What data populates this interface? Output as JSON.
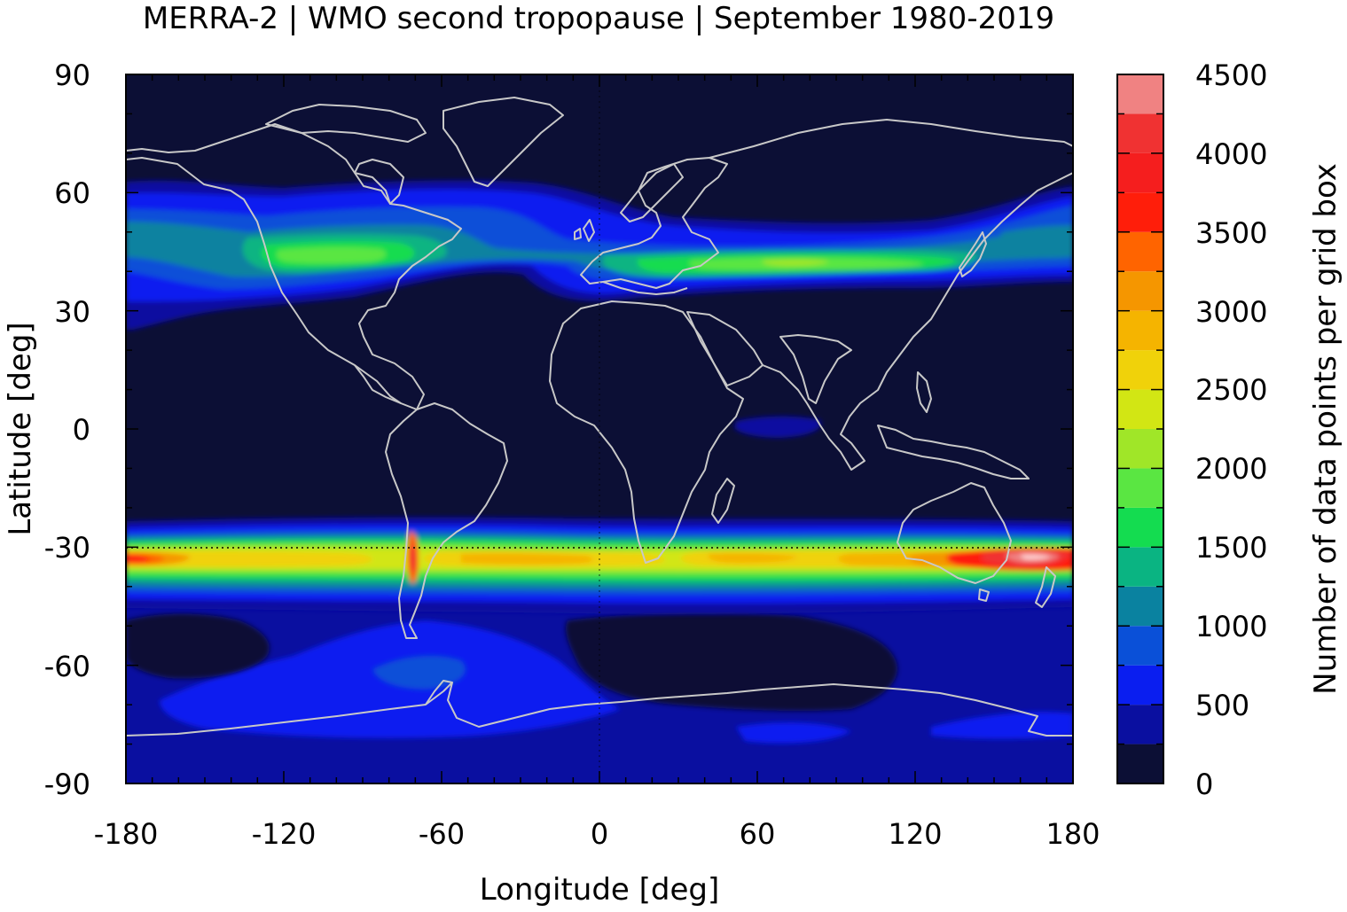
{
  "title": "MERRA-2 | WMO second tropopause | September 1980-2019",
  "chart_data": {
    "type": "heatmap",
    "title": "MERRA-2 | WMO second tropopause | September 1980-2019",
    "xlabel": "Longitude [deg]",
    "ylabel": "Latitude [deg]",
    "colorbar_label": "Number of data points per grid box",
    "xlim": [
      -180,
      180
    ],
    "ylim": [
      -90,
      90
    ],
    "xticks": [
      "-180",
      "-120",
      "-60",
      "0",
      "60",
      "120",
      "180"
    ],
    "yticks": [
      "90",
      "60",
      "30",
      "0",
      "-30",
      "-60",
      "-90"
    ],
    "colorbar_range": [
      0,
      4500
    ],
    "colorbar_ticks": [
      "4500",
      "4000",
      "3500",
      "3000",
      "2500",
      "2000",
      "1500",
      "1000",
      "500",
      "0"
    ],
    "colorbar_levels": [
      {
        "from": 0,
        "to": 250,
        "color": "#0c0f35"
      },
      {
        "from": 250,
        "to": 500,
        "color": "#0a0fa0"
      },
      {
        "from": 500,
        "to": 750,
        "color": "#0a1ef0"
      },
      {
        "from": 750,
        "to": 1000,
        "color": "#0a50d8"
      },
      {
        "from": 1000,
        "to": 1250,
        "color": "#0a82a0"
      },
      {
        "from": 1250,
        "to": 1500,
        "color": "#0ab482"
      },
      {
        "from": 1500,
        "to": 1750,
        "color": "#14dc50"
      },
      {
        "from": 1750,
        "to": 2000,
        "color": "#5ae642"
      },
      {
        "from": 2000,
        "to": 2250,
        "color": "#a0e628"
      },
      {
        "from": 2250,
        "to": 2500,
        "color": "#d2e614"
      },
      {
        "from": 2500,
        "to": 2750,
        "color": "#f0d20a"
      },
      {
        "from": 2750,
        "to": 3000,
        "color": "#f5b400"
      },
      {
        "from": 3000,
        "to": 3250,
        "color": "#f59600"
      },
      {
        "from": 3250,
        "to": 3500,
        "color": "#ff6400"
      },
      {
        "from": 3500,
        "to": 3750,
        "color": "#ff1e0a"
      },
      {
        "from": 3750,
        "to": 4000,
        "color": "#f51e1e"
      },
      {
        "from": 4000,
        "to": 4250,
        "color": "#f03232"
      },
      {
        "from": 4250,
        "to": 4500,
        "color": "#f08282"
      },
      {
        "from": 4500,
        "to": 4750,
        "color": "#ffd2d2"
      }
    ],
    "features": [
      {
        "name": "southern subtropical band",
        "lat_center": -32,
        "peak_value": 4400,
        "peak_lon": 165
      },
      {
        "name": "northern midlatitude band",
        "lat_center": 45,
        "peak_value": 2100,
        "peak_lon": 75
      },
      {
        "name": "southern polar region",
        "lat_range": [
          -90,
          -45
        ],
        "typical_value": 500
      }
    ]
  },
  "colors": {
    "background_field": "#0c0f35",
    "coastline": "#c8c8c8",
    "frame": "#000000"
  }
}
